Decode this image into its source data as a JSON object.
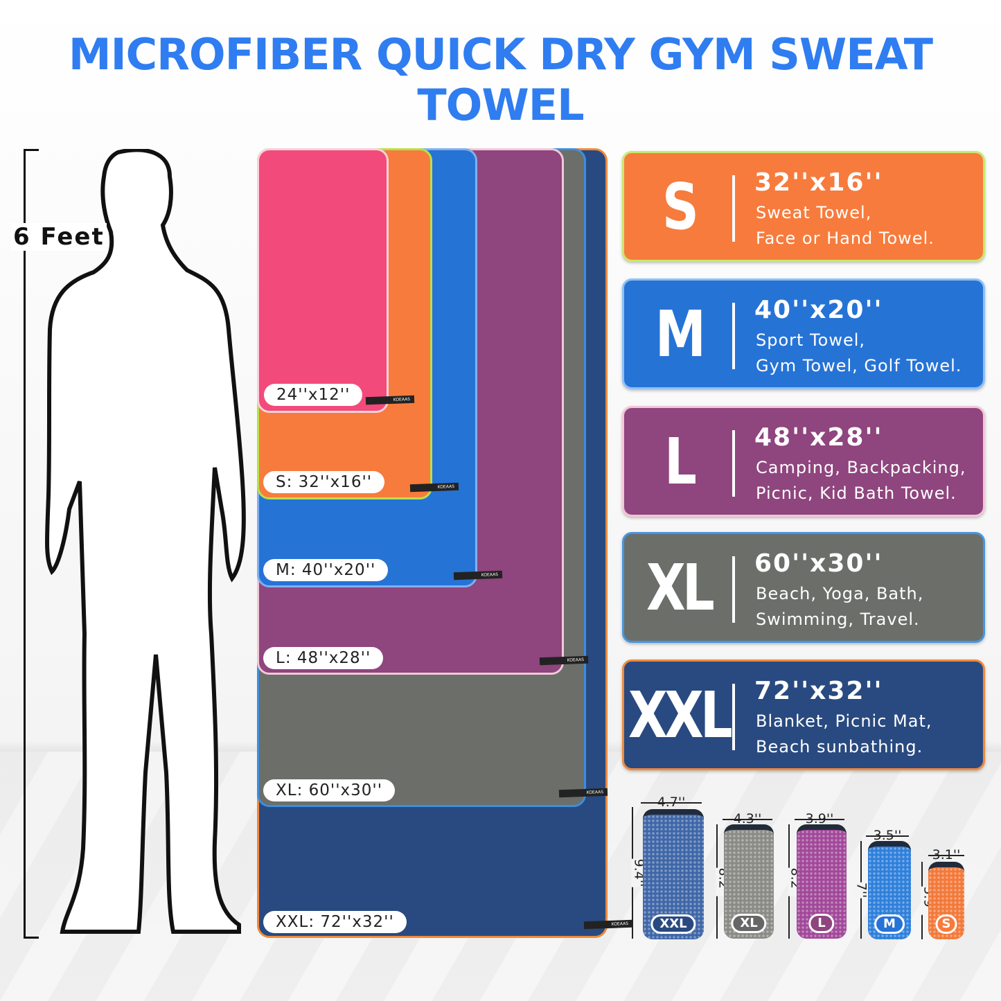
{
  "title": "MICROFIBER QUICK DRY GYM SWEAT TOWEL",
  "height_label": "6 Feet",
  "towels": [
    {
      "label": "24''x12''",
      "color": "#f24a7a"
    },
    {
      "label": "S: 32''x16''",
      "color": "#f77b3c"
    },
    {
      "label": "M: 40''x20''",
      "color": "#2673d6"
    },
    {
      "label": "L: 48''x28''",
      "color": "#8f457e"
    },
    {
      "label": "XL: 60''x30''",
      "color": "#6c6e69"
    },
    {
      "label": "XXL: 72''x32''",
      "color": "#294a80"
    }
  ],
  "tag_brand": "KOEAAS",
  "cards": [
    {
      "size": "S",
      "dims": "32''x16''",
      "desc1": "Sweat Towel,",
      "desc2": "Face or Hand Towel.",
      "color": "#f77b3c"
    },
    {
      "size": "M",
      "dims": "40''x20''",
      "desc1": "Sport Towel,",
      "desc2": "Gym Towel, Golf Towel.",
      "color": "#2673d6"
    },
    {
      "size": "L",
      "dims": "48''x28''",
      "desc1": "Camping, Backpacking,",
      "desc2": "Picnic, Kid Bath Towel.",
      "color": "#8f457e"
    },
    {
      "size": "XL",
      "dims": "60''x30''",
      "desc1": "Beach, Yoga, Bath,",
      "desc2": "Swimming, Travel.",
      "color": "#6c6e69"
    },
    {
      "size": "XXL",
      "dims": "72''x32''",
      "desc1": "Blanket, Picnic Mat,",
      "desc2": "Beach sunbathing.",
      "color": "#294a80"
    }
  ],
  "pouches": [
    {
      "size": "XXL",
      "width": "4.7''",
      "height": "9.4''",
      "color": "#3f67a8"
    },
    {
      "size": "XL",
      "width": "4.3''",
      "height": "8.2''",
      "color": "#8a8a86"
    },
    {
      "size": "L",
      "width": "3.9''",
      "height": "8.2''",
      "color": "#a2489a"
    },
    {
      "size": "M",
      "width": "3.5''",
      "height": "7''",
      "color": "#2f80db"
    },
    {
      "size": "S",
      "width": "3.1''",
      "height": "5.9''",
      "color": "#f3793a"
    }
  ]
}
